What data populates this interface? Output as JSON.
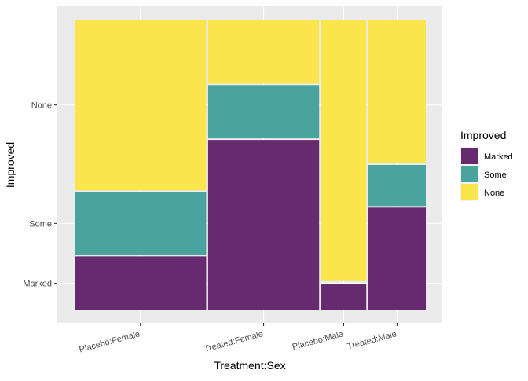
{
  "chart_data": {
    "type": "mosaic",
    "title": "",
    "xlabel": "Treatment:Sex",
    "ylabel": "Improved",
    "categories": [
      "Placebo:Female",
      "Treated:Female",
      "Placebo:Male",
      "Treated:Male"
    ],
    "levels": [
      "Marked",
      "Some",
      "None"
    ],
    "counts": [
      [
        6,
        7,
        19
      ],
      [
        16,
        5,
        6
      ],
      [
        1,
        0,
        10
      ],
      [
        5,
        2,
        7
      ]
    ],
    "y_tick_labels": [
      "Marked",
      "Some",
      "None"
    ],
    "legend": {
      "title": "Improved",
      "position": "right",
      "entries": [
        {
          "label": "Marked",
          "color": "#662b6e"
        },
        {
          "label": "Some",
          "color": "#4aa39f"
        },
        {
          "label": "None",
          "color": "#fbe54d"
        }
      ]
    },
    "colors": {
      "panel": "#ebebeb",
      "grid": "#ffffff"
    }
  }
}
